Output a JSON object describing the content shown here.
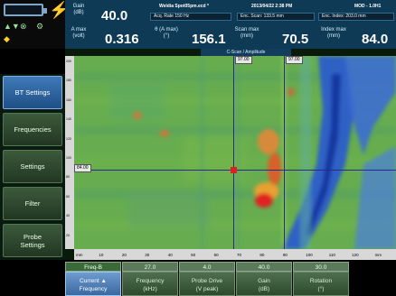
{
  "status": {
    "battery_icon": "battery-icon",
    "power_icon": "lightning-icon"
  },
  "readings": {
    "gain_label": "Gain\n(dB)",
    "gain_value": "40.0",
    "amax_label": "A max\n(volt)",
    "amax_value": "0.316",
    "theta_label": "θ (A max)\n(°)",
    "theta_value": "156.1",
    "scanmax_label": "Scan max\n(mm)",
    "scanmax_value": "70.5",
    "indexmax_label": "Index max\n(mm)",
    "indexmax_value": "84.0"
  },
  "header": {
    "filename": "Weldia Spot05pm.ecd *",
    "datetime": "2013/04/22 2:38 PM",
    "memory": "MOD - 1.0H1",
    "acq_rate": "Acq. Rate 150 Hz",
    "enc_scan": "Enc. Scan: 133.5 mm",
    "enc_index": "Enc. Index: 203.0 mm"
  },
  "plot": {
    "title": "C-Scan / Amplitude",
    "cursor_x_tag": "97.00",
    "cursor_x2_tag": "97.00",
    "cursor_y_tag": "84.00",
    "bottom_ticks": [
      "mm",
      "10",
      "20",
      "30",
      "40",
      "50",
      "60",
      "70",
      "80",
      "90",
      "100",
      "110",
      "120",
      "mm"
    ],
    "left_ticks": [
      "200",
      "180",
      "160",
      "140",
      "120",
      "100",
      "80",
      "60",
      "40",
      "20"
    ]
  },
  "menu": {
    "items": [
      {
        "label": "BT Settings"
      },
      {
        "label": "Frequencies"
      },
      {
        "label": "Settings"
      },
      {
        "label": "Filter"
      },
      {
        "label": "Probe\nSettings"
      }
    ]
  },
  "controls": [
    {
      "value": "Freq-B",
      "label": "Current ▲\nFrequency"
    },
    {
      "value": "27.0",
      "label": "Frequency\n(kHz)"
    },
    {
      "value": "4.0",
      "label": "Probe Drive\n(V peak)"
    },
    {
      "value": "40.0",
      "label": "Gain\n(dB)"
    },
    {
      "value": "30.0",
      "label": "Rotation\n(°)"
    }
  ],
  "colors": {
    "accent_blue": "#3f7ab8",
    "panel_green": "#3c5a3c",
    "header_teal": "#0f3a55"
  }
}
